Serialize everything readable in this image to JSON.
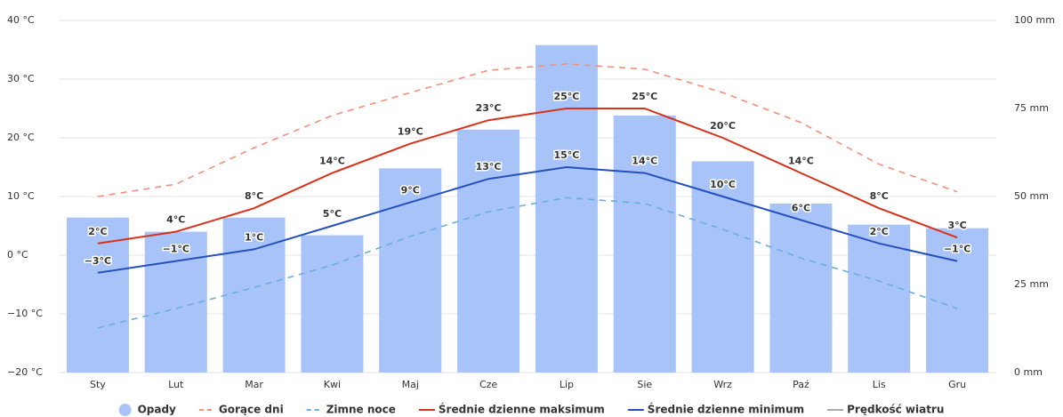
{
  "chart_data": {
    "type": "combo",
    "categories": [
      "Sty",
      "Lut",
      "Mar",
      "Kwi",
      "Maj",
      "Cze",
      "Lip",
      "Sie",
      "Wrz",
      "Paź",
      "Lis",
      "Gru"
    ],
    "ylim": [
      -20,
      40
    ],
    "yticks": [
      {
        "value": -20,
        "label": "−20 °C"
      },
      {
        "value": -10,
        "label": "−10 °C"
      },
      {
        "value": 0,
        "label": "0 °C"
      },
      {
        "value": 10,
        "label": "10 °C"
      },
      {
        "value": 20,
        "label": "20 °C"
      },
      {
        "value": 30,
        "label": "30 °C"
      },
      {
        "value": 40,
        "label": "40 °C"
      }
    ],
    "y2lim": [
      0,
      100
    ],
    "y2ticks": [
      {
        "value": 0,
        "label": "0 mm"
      },
      {
        "value": 25,
        "label": "25 mm"
      },
      {
        "value": 50,
        "label": "50 mm"
      },
      {
        "value": 75,
        "label": "75 mm"
      },
      {
        "value": 100,
        "label": "100 mm"
      }
    ],
    "grid": true,
    "series": [
      {
        "name": "Opady",
        "type": "bar",
        "axis": "y2",
        "color": "#a7c3f8",
        "values": [
          44,
          40,
          44,
          39,
          58,
          69,
          93,
          73,
          60,
          48,
          42,
          41
        ]
      },
      {
        "name": "Gorące dni",
        "type": "line",
        "dashed": true,
        "color": "#f4907a",
        "values": [
          10,
          12.1,
          18.3,
          23.8,
          27.7,
          31.5,
          32.6,
          31.7,
          27.7,
          22.6,
          15.5,
          10.8
        ]
      },
      {
        "name": "Zimne noce",
        "type": "line",
        "dashed": true,
        "color": "#6aaee0",
        "values": [
          -12.4,
          -9.1,
          -5.5,
          -1.7,
          3.2,
          7.4,
          9.8,
          8.8,
          4.4,
          -0.5,
          -4.4,
          -9.1
        ]
      },
      {
        "name": "Średnie dzienne maksimum",
        "type": "line",
        "color": "#d8321c",
        "values": [
          2,
          4,
          8,
          14,
          19,
          23,
          25,
          25,
          20,
          14,
          8,
          3
        ],
        "value_labels": [
          "2°C",
          "4°C",
          "8°C",
          "14°C",
          "19°C",
          "23°C",
          "25°C",
          "25°C",
          "20°C",
          "14°C",
          "8°C",
          "3°C"
        ]
      },
      {
        "name": "Średnie dzienne minimum",
        "type": "line",
        "color": "#2451bd",
        "values": [
          -3,
          -1,
          1,
          5,
          9,
          13,
          15,
          14,
          10,
          6,
          2,
          -1
        ],
        "value_labels": [
          "−3°C",
          "−1°C",
          "1°C",
          "5°C",
          "9°C",
          "13°C",
          "15°C",
          "14°C",
          "10°C",
          "6°C",
          "2°C",
          "−1°C"
        ]
      },
      {
        "name": "Prędkość wiatru",
        "type": "line",
        "hidden": true,
        "color": "#aaaaaa",
        "values": [
          null,
          null,
          null,
          null,
          null,
          null,
          null,
          null,
          null,
          null,
          null,
          null
        ]
      }
    ]
  }
}
